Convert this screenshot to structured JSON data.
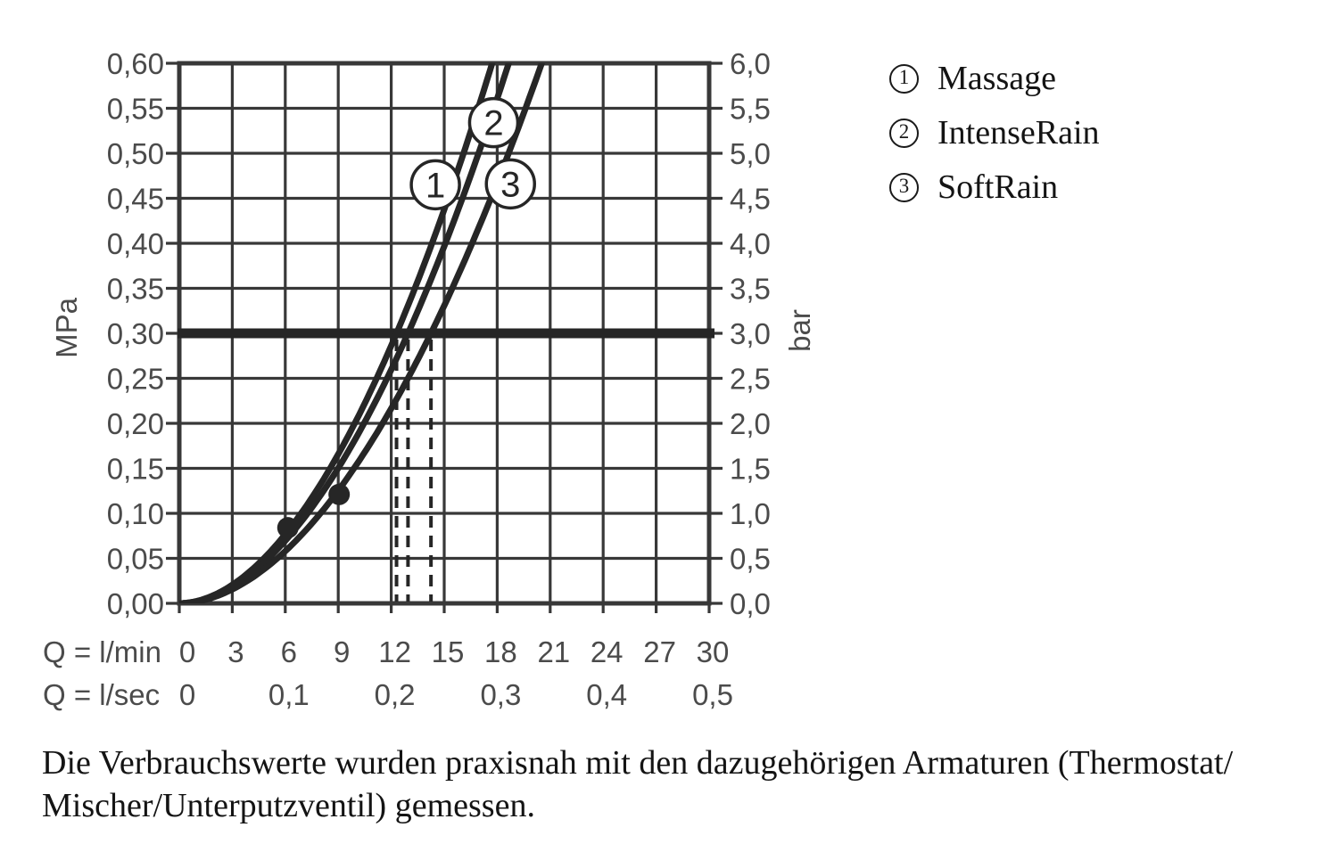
{
  "chart_data": {
    "type": "line",
    "title": "",
    "x_axis": {
      "primary": {
        "label": "Q = l/min",
        "ticks": [
          "0",
          "3",
          "6",
          "9",
          "12",
          "15",
          "18",
          "21",
          "24",
          "27",
          "30"
        ],
        "values": [
          0,
          3,
          6,
          9,
          12,
          15,
          18,
          21,
          24,
          27,
          30
        ]
      },
      "secondary": {
        "label": "Q = l/sec",
        "ticks": [
          "0",
          "0,1",
          "0,2",
          "0,3",
          "0,4",
          "0,5"
        ],
        "values": [
          0,
          6,
          12,
          18,
          24,
          30
        ]
      },
      "range": [
        0,
        30
      ]
    },
    "y_axis_left": {
      "label": "MPa",
      "ticks": [
        "0,00",
        "0,05",
        "0,10",
        "0,15",
        "0,20",
        "0,25",
        "0,30",
        "0,35",
        "0,40",
        "0,45",
        "0,50",
        "0,55",
        "0,60"
      ],
      "values": [
        0,
        0.05,
        0.1,
        0.15,
        0.2,
        0.25,
        0.3,
        0.35,
        0.4,
        0.45,
        0.5,
        0.55,
        0.6
      ],
      "range": [
        0,
        0.6
      ]
    },
    "y_axis_right": {
      "label": "bar",
      "ticks": [
        "0,0",
        "0,5",
        "1,0",
        "1,5",
        "2,0",
        "2,5",
        "3,0",
        "3,5",
        "4,0",
        "4,5",
        "5,0",
        "5,5",
        "6,0"
      ],
      "range": [
        0,
        6
      ]
    },
    "grid": true,
    "curve_exponent": 1.9,
    "reference_line_mpa": 0.3,
    "flow_marker_lines_lmin": [
      12.3,
      12.95,
      14.25
    ],
    "measured_points": [
      [
        6.15,
        0.084
      ],
      [
        9.05,
        0.121
      ]
    ],
    "series": [
      {
        "number": "1",
        "name": "Massage",
        "flow_at_3bar_lmin": 12.3,
        "label_q": 14.5,
        "label_p": 0.465
      },
      {
        "number": "2",
        "name": "IntenseRain",
        "flow_at_3bar_lmin": 12.95,
        "label_q": 17.8,
        "label_p": 0.534
      },
      {
        "number": "3",
        "name": "SoftRain",
        "flow_at_3bar_lmin": 14.25,
        "label_q": 18.75,
        "label_p": 0.466
      }
    ],
    "colors": {
      "line": "#262626",
      "grid": "#383838",
      "tick_text": "#4b4b4b",
      "text": "#141414",
      "background": "#ffffff"
    }
  },
  "legend": {
    "items": [
      {
        "number": "1",
        "label": "Massage"
      },
      {
        "number": "2",
        "label": "IntenseRain"
      },
      {
        "number": "3",
        "label": "SoftRain"
      }
    ]
  },
  "footnote": {
    "lines": [
      "Die Verbrauchswerte wurden praxisnah mit den dazugehörigen Armaturen (Thermostat/",
      "Mischer/Unterputzventil) gemessen."
    ]
  }
}
